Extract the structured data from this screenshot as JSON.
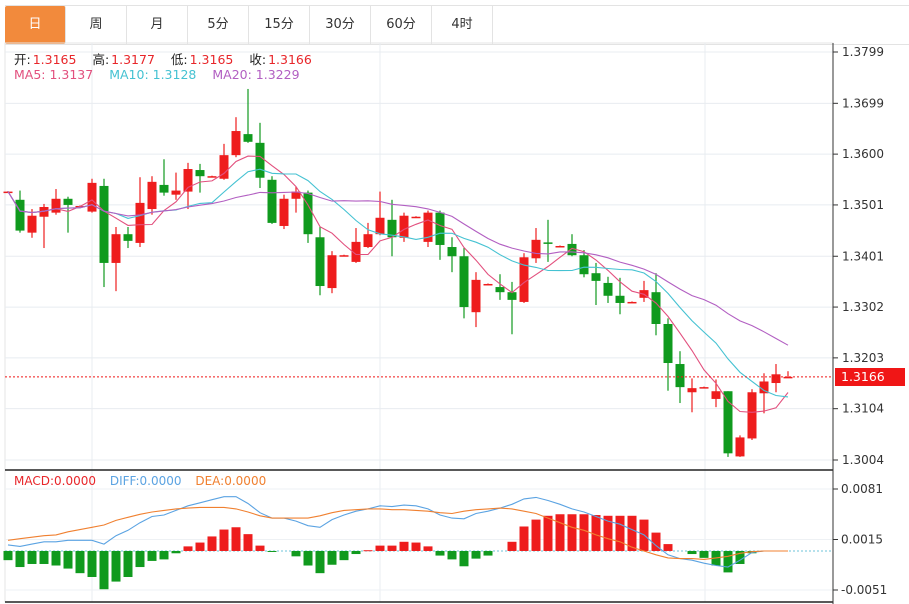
{
  "tabs": [
    {
      "label": "日",
      "active": true
    },
    {
      "label": "周"
    },
    {
      "label": "月"
    },
    {
      "label": "5分"
    },
    {
      "label": "15分"
    },
    {
      "label": "30分"
    },
    {
      "label": "60分"
    },
    {
      "label": "4时"
    }
  ],
  "ohlc_legend": {
    "open_label": "开:",
    "open": "1.3165",
    "high_label": "高:",
    "high": "1.3177",
    "low_label": "低:",
    "low": "1.3165",
    "close_label": "收:",
    "close": "1.3166"
  },
  "ma_legend": {
    "ma5": "MA5: 1.3137",
    "ma10": "MA10: 1.3128",
    "ma20": "MA20: 1.3229"
  },
  "macd_legend": {
    "macd": "MACD:0.0000",
    "diff": "DIFF:0.0000",
    "dea": "DEA:0.0000"
  },
  "current_price": "1.3166",
  "colors": {
    "up": "#ee1d1d",
    "down": "#109a1e",
    "ma5": "#e2507e",
    "ma10": "#45c2d2",
    "ma20": "#b25fc2",
    "diff": "#5ba3e2",
    "dea": "#f08030",
    "active_tab": "#f28a3c"
  },
  "chart_data": [
    {
      "type": "candlestick",
      "yticks": [
        "1.3799",
        "1.3699",
        "1.3600",
        "1.3501",
        "1.3401",
        "1.3302",
        "1.3203",
        "1.3104",
        "1.3004"
      ],
      "ylim": [
        1.3004,
        1.3799
      ],
      "grid": true,
      "ma_periods": [
        5,
        10,
        20
      ],
      "ohlc": [
        [
          1.3527,
          1.3528,
          1.3526,
          1.3527
        ],
        [
          1.3511,
          1.3529,
          1.3447,
          1.3451
        ],
        [
          1.3447,
          1.3493,
          1.3437,
          1.348
        ],
        [
          1.3478,
          1.3503,
          1.3417,
          1.3497
        ],
        [
          1.3486,
          1.3532,
          1.3482,
          1.3513
        ],
        [
          1.3513,
          1.3517,
          1.3447,
          1.3501
        ],
        [
          1.3499,
          1.35,
          1.3498,
          1.3499
        ],
        [
          1.3488,
          1.3552,
          1.3486,
          1.3544
        ],
        [
          1.3538,
          1.3552,
          1.3341,
          1.3388
        ],
        [
          1.3388,
          1.3458,
          1.3333,
          1.3444
        ],
        [
          1.3444,
          1.3458,
          1.3417,
          1.3431
        ],
        [
          1.3427,
          1.3555,
          1.3419,
          1.3505
        ],
        [
          1.3493,
          1.3557,
          1.3482,
          1.3546
        ],
        [
          1.354,
          1.359,
          1.3519,
          1.3525
        ],
        [
          1.3521,
          1.3564,
          1.3511,
          1.3529
        ],
        [
          1.3527,
          1.3583,
          1.3493,
          1.3571
        ],
        [
          1.3569,
          1.3581,
          1.3525,
          1.3557
        ],
        [
          1.3557,
          1.3558,
          1.3556,
          1.3557
        ],
        [
          1.3552,
          1.362,
          1.355,
          1.3598
        ],
        [
          1.3598,
          1.3672,
          1.3594,
          1.3645
        ],
        [
          1.3639,
          1.3727,
          1.3622,
          1.3624
        ],
        [
          1.3622,
          1.3661,
          1.3534,
          1.3554
        ],
        [
          1.355,
          1.3557,
          1.3464,
          1.3466
        ],
        [
          1.346,
          1.3521,
          1.3454,
          1.3513
        ],
        [
          1.3513,
          1.3536,
          1.3486,
          1.3527
        ],
        [
          1.3525,
          1.3529,
          1.3427,
          1.3444
        ],
        [
          1.3438,
          1.3458,
          1.3325,
          1.3343
        ],
        [
          1.3339,
          1.3411,
          1.3329,
          1.3403
        ],
        [
          1.3403,
          1.3404,
          1.3402,
          1.3403
        ],
        [
          1.339,
          1.3456,
          1.3388,
          1.3429
        ],
        [
          1.3419,
          1.3466,
          1.3417,
          1.3444
        ],
        [
          1.3444,
          1.3527,
          1.3442,
          1.3476
        ],
        [
          1.3472,
          1.3511,
          1.3401,
          1.3438
        ],
        [
          1.3437,
          1.3486,
          1.3429,
          1.348
        ],
        [
          1.3478,
          1.3479,
          1.3477,
          1.3478
        ],
        [
          1.3429,
          1.349,
          1.3419,
          1.3486
        ],
        [
          1.3486,
          1.349,
          1.3394,
          1.3423
        ],
        [
          1.3419,
          1.3438,
          1.337,
          1.3401
        ],
        [
          1.3401,
          1.3417,
          1.328,
          1.3302
        ],
        [
          1.3292,
          1.337,
          1.3263,
          1.3355
        ],
        [
          1.3347,
          1.3348,
          1.3346,
          1.3347
        ],
        [
          1.3341,
          1.3366,
          1.3316,
          1.3331
        ],
        [
          1.3331,
          1.3351,
          1.3249,
          1.3316
        ],
        [
          1.3312,
          1.3407,
          1.331,
          1.3399
        ],
        [
          1.3397,
          1.3456,
          1.3388,
          1.3433
        ],
        [
          1.3428,
          1.3472,
          1.339,
          1.3426
        ],
        [
          1.3421,
          1.3422,
          1.342,
          1.3421
        ],
        [
          1.3425,
          1.3444,
          1.3401,
          1.3403
        ],
        [
          1.3403,
          1.3413,
          1.336,
          1.3366
        ],
        [
          1.3368,
          1.3388,
          1.3306,
          1.3353
        ],
        [
          1.3349,
          1.3361,
          1.331,
          1.3324
        ],
        [
          1.3324,
          1.3359,
          1.3288,
          1.331
        ],
        [
          1.3312,
          1.3313,
          1.3311,
          1.3312
        ],
        [
          1.332,
          1.3353,
          1.3312,
          1.3335
        ],
        [
          1.3331,
          1.3368,
          1.3247,
          1.3269
        ],
        [
          1.3269,
          1.328,
          1.3139,
          1.3193
        ],
        [
          1.3191,
          1.3216,
          1.3115,
          1.3146
        ],
        [
          1.3136,
          1.3163,
          1.3097,
          1.3144
        ],
        [
          1.3146,
          1.3147,
          1.3145,
          1.3146
        ],
        [
          1.3123,
          1.3161,
          1.3107,
          1.3138
        ],
        [
          1.3138,
          1.3138,
          1.301,
          1.3017
        ],
        [
          1.3011,
          1.3052,
          1.301,
          1.3048
        ],
        [
          1.3046,
          1.3142,
          1.3043,
          1.3136
        ],
        [
          1.3134,
          1.3173,
          1.3095,
          1.3157
        ],
        [
          1.3154,
          1.3191,
          1.3136,
          1.3171
        ],
        [
          1.3165,
          1.3177,
          1.3165,
          1.3166
        ]
      ]
    },
    {
      "type": "bar+line",
      "yticks": [
        "0.0081",
        "0.0015",
        "-0.0051"
      ],
      "ylim": [
        -0.0051,
        0.0081
      ],
      "series": [
        {
          "name": "MACD",
          "type": "bar",
          "values": [
            -0.0012,
            -0.0021,
            -0.0017,
            -0.0017,
            -0.0019,
            -0.0023,
            -0.0029,
            -0.0034,
            -0.005,
            -0.004,
            -0.0034,
            -0.0021,
            -0.0013,
            -0.0011,
            -0.0003,
            0.0006,
            0.0011,
            0.0019,
            0.0028,
            0.0031,
            0.0022,
            0.0007,
            -0.0001,
            0.0,
            -0.0007,
            -0.0019,
            -0.0029,
            -0.0018,
            -0.0012,
            -0.0004,
            0.0001,
            0.0007,
            0.0007,
            0.0012,
            0.0011,
            0.0006,
            -0.0006,
            -0.0011,
            -0.002,
            -0.001,
            -0.0006,
            0.0,
            0.0012,
            0.0032,
            0.0041,
            0.0046,
            0.0048,
            0.0048,
            0.0048,
            0.0047,
            0.0046,
            0.0046,
            0.0046,
            0.0041,
            0.0024,
            0.0009,
            0.0,
            -0.0004,
            -0.0009,
            -0.0019,
            -0.0028,
            -0.0017,
            -0.0003,
            0.0,
            0.0,
            0.0
          ]
        },
        {
          "name": "DIFF",
          "type": "line",
          "values": [
            0.0008,
            0.0006,
            0.0009,
            0.0012,
            0.0012,
            0.0014,
            0.0014,
            0.0014,
            0.0009,
            0.002,
            0.0027,
            0.0037,
            0.0045,
            0.0047,
            0.0053,
            0.0059,
            0.0063,
            0.0067,
            0.0071,
            0.0071,
            0.0062,
            0.005,
            0.0043,
            0.0043,
            0.0039,
            0.0033,
            0.0031,
            0.0041,
            0.0047,
            0.0052,
            0.0055,
            0.0059,
            0.0058,
            0.006,
            0.0059,
            0.0055,
            0.0047,
            0.0043,
            0.0042,
            0.0049,
            0.0052,
            0.0056,
            0.0061,
            0.0068,
            0.007,
            0.0066,
            0.0061,
            0.0055,
            0.0051,
            0.0045,
            0.0039,
            0.0035,
            0.0028,
            0.0021,
            0.0007,
            -0.0005,
            -0.001,
            -0.0012,
            -0.0016,
            -0.0019,
            -0.0021,
            -0.0012,
            -0.0002,
            0.0,
            0.0,
            0.0
          ]
        },
        {
          "name": "DEA",
          "type": "line",
          "values": [
            0.0014,
            0.0016,
            0.0018,
            0.002,
            0.0021,
            0.0025,
            0.0028,
            0.0031,
            0.0034,
            0.004,
            0.0044,
            0.0048,
            0.0051,
            0.0053,
            0.0055,
            0.0056,
            0.0057,
            0.0057,
            0.0057,
            0.0055,
            0.0051,
            0.0046,
            0.0043,
            0.0043,
            0.0043,
            0.0043,
            0.0046,
            0.005,
            0.0053,
            0.0054,
            0.0055,
            0.0055,
            0.0054,
            0.0054,
            0.0053,
            0.0052,
            0.005,
            0.0049,
            0.0052,
            0.0054,
            0.0055,
            0.0056,
            0.0055,
            0.0052,
            0.0049,
            0.0043,
            0.0037,
            0.0031,
            0.0027,
            0.0021,
            0.0016,
            0.0012,
            0.0005,
            0.0,
            -0.0005,
            -0.0009,
            -0.001,
            -0.001,
            -0.0011,
            -0.0009,
            -0.0007,
            -0.0003,
            -0.0001,
            0.0,
            0.0,
            0.0
          ]
        }
      ]
    }
  ]
}
